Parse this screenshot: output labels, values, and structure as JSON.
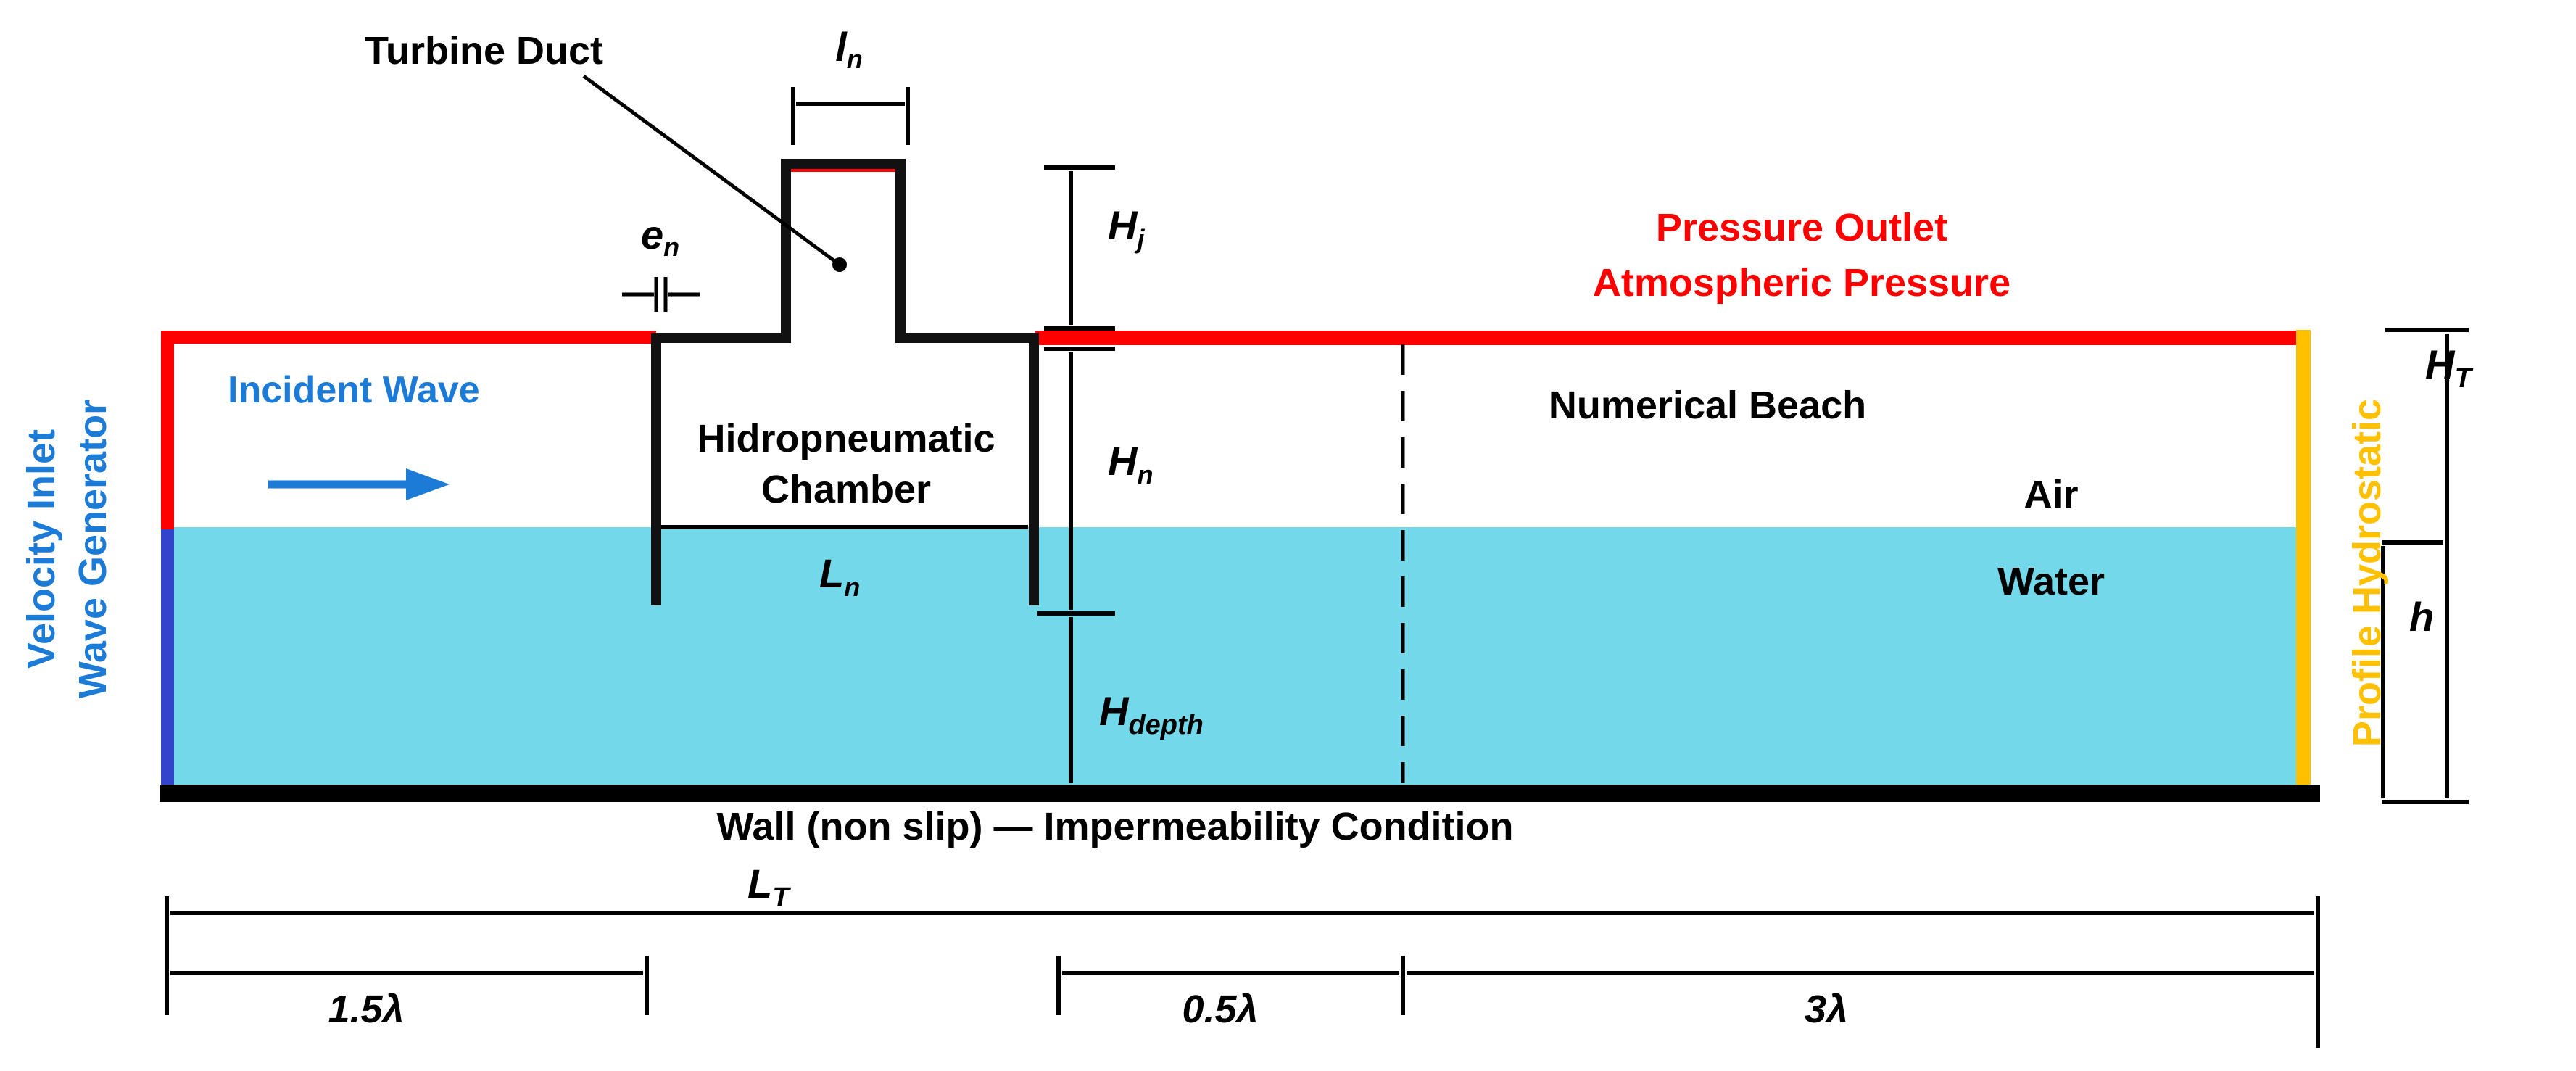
{
  "labels": {
    "turbine_duct": "Turbine Duct",
    "pressure_outlet": "Pressure Outlet",
    "atmospheric_pressure": "Atmospheric Pressure",
    "incident_wave": "Incident Wave",
    "hidropneumatic": "Hidropneumatic",
    "chamber": "Chamber",
    "numerical_beach": "Numerical Beach",
    "air": "Air",
    "water": "Water",
    "velocity_inlet": "Velocity Inlet",
    "wave_generator": "Wave Generator",
    "profile_hydrostatic": "Profile Hydrostatic",
    "wall_condition": "Wall (non slip) — Impermeability Condition"
  },
  "dimensions": {
    "l_n": {
      "main": "l",
      "sub": "n"
    },
    "e_n": {
      "main": "e",
      "sub": "n"
    },
    "H_j": {
      "main": "H",
      "sub": "j"
    },
    "H_n": {
      "main": "H",
      "sub": "n"
    },
    "L_n": {
      "main": "L",
      "sub": "n"
    },
    "H_depth": {
      "main": "H",
      "sub": "depth"
    },
    "H_T": {
      "main": "H",
      "sub": "T"
    },
    "h": {
      "main": "h"
    },
    "L_T": {
      "main": "L",
      "sub": "T"
    },
    "d1": "1.5λ",
    "d2": "0.5λ",
    "d3": "3λ"
  },
  "colors": {
    "water": "#72d8ea",
    "pressure_outlet": "#ff0000",
    "velocity_inlet": "#3344cc",
    "hydrostatic": "#ffc000",
    "inlet_text": "#1c7bd6",
    "structure": "#111111"
  }
}
